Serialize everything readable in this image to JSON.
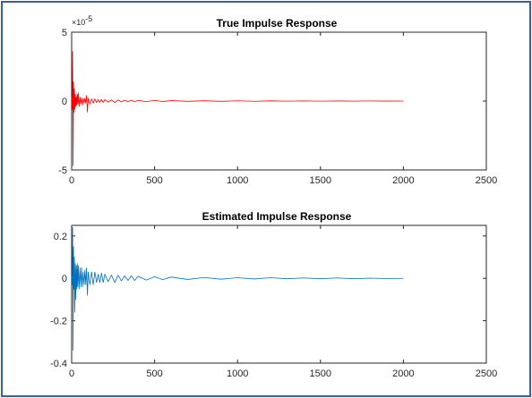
{
  "chart_data": [
    {
      "type": "line",
      "title": "True Impulse Response",
      "xlabel": "",
      "ylabel": "",
      "xlim": [
        0,
        2500
      ],
      "ylim": [
        -5e-05,
        5e-05
      ],
      "y_exponent_label": "×10",
      "y_exponent_power": "-5",
      "xticks": [
        0,
        500,
        1000,
        1500,
        2000,
        2500
      ],
      "xtick_labels": [
        "0",
        "500",
        "1000",
        "1500",
        "2000",
        "2500"
      ],
      "yticks": [
        -5e-05,
        0,
        5e-05
      ],
      "ytick_labels": [
        "-5",
        "0",
        "5"
      ],
      "color": "#ff0000",
      "series": [
        {
          "x": [
            1,
            4,
            6,
            9,
            11,
            14,
            16,
            19,
            22,
            25,
            28,
            31,
            34,
            37,
            40,
            45,
            50,
            55,
            60,
            65,
            70,
            75,
            80,
            85,
            90,
            95,
            100,
            110,
            120,
            130,
            140,
            150,
            160,
            170,
            180,
            190,
            200,
            220,
            240,
            260,
            280,
            300,
            320,
            340,
            360,
            380,
            400,
            450,
            500,
            550,
            600,
            700,
            800,
            900,
            1000,
            1100,
            1200,
            1300,
            1400,
            1500,
            1600,
            1700,
            1800,
            1900,
            2000
          ],
          "y": [
            3e-06,
            -6e-06,
            3.6e-05,
            -4.7e-05,
            1.4e-05,
            -8e-06,
            9e-06,
            -6e-06,
            5e-06,
            -4e-06,
            3e-06,
            -3e-06,
            5e-06,
            -2e-06,
            6e-06,
            -4e-06,
            3e-06,
            -2e-06,
            2.5e-06,
            -3e-06,
            2e-06,
            -1.5e-06,
            2e-06,
            -1.5e-06,
            4e-06,
            -8e-06,
            2e-06,
            -2e-06,
            1.5e-06,
            -1.5e-06,
            1.5e-06,
            -1.2e-06,
            1.2e-06,
            -1e-06,
            1.2e-06,
            -1e-06,
            1e-06,
            -8e-07,
            8e-07,
            -1e-06,
            8e-07,
            -6e-07,
            6e-07,
            -5e-07,
            6e-07,
            -5e-07,
            5e-07,
            -4e-07,
            4e-07,
            -3e-07,
            3e-07,
            -2e-07,
            2e-07,
            -2e-07,
            1.5e-07,
            -1.5e-07,
            1.2e-07,
            -1e-07,
            1e-07,
            -1e-07,
            8e-08,
            -8e-08,
            6e-08,
            -5e-08,
            0.0
          ]
        }
      ]
    },
    {
      "type": "line",
      "title": "Estimated Impulse Response",
      "xlabel": "",
      "ylabel": "",
      "xlim": [
        0,
        2500
      ],
      "ylim": [
        -0.4,
        0.25
      ],
      "xticks": [
        0,
        500,
        1000,
        1500,
        2000,
        2500
      ],
      "xtick_labels": [
        "0",
        "500",
        "1000",
        "1500",
        "2000",
        "2500"
      ],
      "yticks": [
        -0.4,
        -0.2,
        0,
        0.2
      ],
      "ytick_labels": [
        "-0.4",
        "-0.2",
        "0",
        "0.2"
      ],
      "color": "#0072bd",
      "series": [
        {
          "x": [
            1,
            4,
            6,
            9,
            11,
            14,
            16,
            19,
            22,
            25,
            28,
            31,
            34,
            37,
            40,
            45,
            50,
            55,
            60,
            65,
            70,
            75,
            80,
            85,
            90,
            95,
            100,
            110,
            120,
            130,
            140,
            150,
            160,
            170,
            180,
            190,
            200,
            220,
            240,
            260,
            280,
            300,
            320,
            340,
            360,
            380,
            400,
            450,
            500,
            550,
            600,
            700,
            800,
            900,
            1000,
            1100,
            1200,
            1300,
            1400,
            1500,
            1600,
            1700,
            1800,
            1900,
            2000
          ],
          "y": [
            0.01,
            -0.03,
            0.24,
            -0.34,
            0.15,
            -0.05,
            0.1,
            -0.16,
            0.07,
            -0.1,
            0.06,
            -0.05,
            0.07,
            -0.04,
            0.06,
            -0.05,
            0.05,
            -0.04,
            0.05,
            -0.04,
            0.03,
            -0.03,
            0.04,
            -0.03,
            0.05,
            -0.08,
            0.03,
            -0.03,
            0.03,
            -0.03,
            0.03,
            -0.02,
            0.02,
            -0.02,
            0.025,
            -0.02,
            0.02,
            -0.015,
            0.015,
            -0.02,
            0.015,
            -0.012,
            0.012,
            -0.01,
            0.012,
            -0.01,
            0.01,
            -0.008,
            0.008,
            -0.006,
            0.006,
            -0.005,
            0.004,
            -0.004,
            0.003,
            -0.003,
            0.003,
            -0.002,
            0.002,
            -0.002,
            0.002,
            -0.002,
            0.001,
            -0.001,
            0.0
          ]
        }
      ]
    }
  ]
}
